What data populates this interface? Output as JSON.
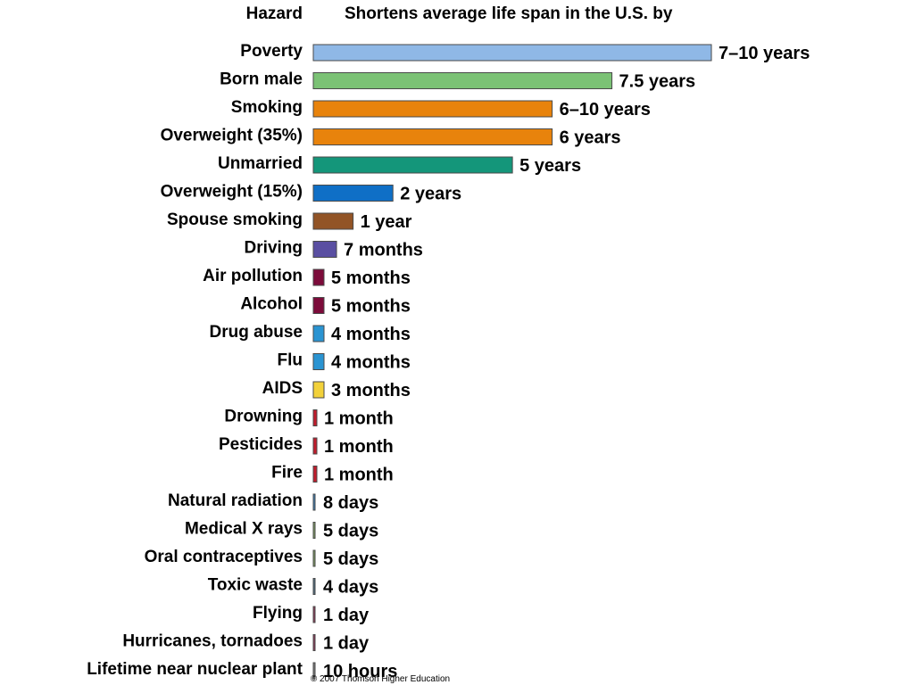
{
  "chart_data": {
    "type": "bar",
    "orientation": "horizontal",
    "category_header": "Hazard",
    "value_header": "Shortens average life span in the U.S. by",
    "value_unit": "days",
    "categories": [
      "Poverty",
      "Born male",
      "Smoking",
      "Overweight (35%)",
      "Unmarried",
      "Overweight (15%)",
      "Spouse smoking",
      "Driving",
      "Air pollution",
      "Alcohol",
      "Drug abuse",
      "Flu",
      "AIDS",
      "Drowning",
      "Pesticides",
      "Fire",
      "Natural radiation",
      "Medical X rays",
      "Oral contraceptives",
      "Toxic waste",
      "Flying",
      "Hurricanes, tornadoes",
      "Lifetime near nuclear plant"
    ],
    "value_labels": [
      "7–10 years",
      "7.5 years",
      "6–10 years",
      "6 years",
      "5 years",
      "2 years",
      "1 year",
      "7 months",
      "5 months",
      "5 months",
      "4 months",
      "4 months",
      "3 months",
      "1 month",
      "1 month",
      "1 month",
      "8 days",
      "5 days",
      "5 days",
      "4 days",
      "1 day",
      "1 day",
      "10 hours"
    ],
    "values": [
      3650,
      2738,
      2190,
      2190,
      1826,
      730,
      365,
      213,
      152,
      152,
      122,
      122,
      91,
      30,
      30,
      30,
      8,
      5,
      5,
      4,
      1,
      1,
      0.42
    ],
    "colors": [
      "#8fb8e6",
      "#7bc275",
      "#e8830c",
      "#e8830c",
      "#14967a",
      "#0f6fc6",
      "#925426",
      "#5a4fa2",
      "#7c0b3a",
      "#7c0b3a",
      "#2a94d2",
      "#2a94d2",
      "#f2d13a",
      "#c01c2c",
      "#c01c2c",
      "#c01c2c",
      "#3a7eb8",
      "#7e9f62",
      "#7e9f62",
      "#4f6e82",
      "#8f3655",
      "#8f3655",
      "#7f7f7f"
    ]
  },
  "credit": "© 2007 Thomson Higher Education"
}
